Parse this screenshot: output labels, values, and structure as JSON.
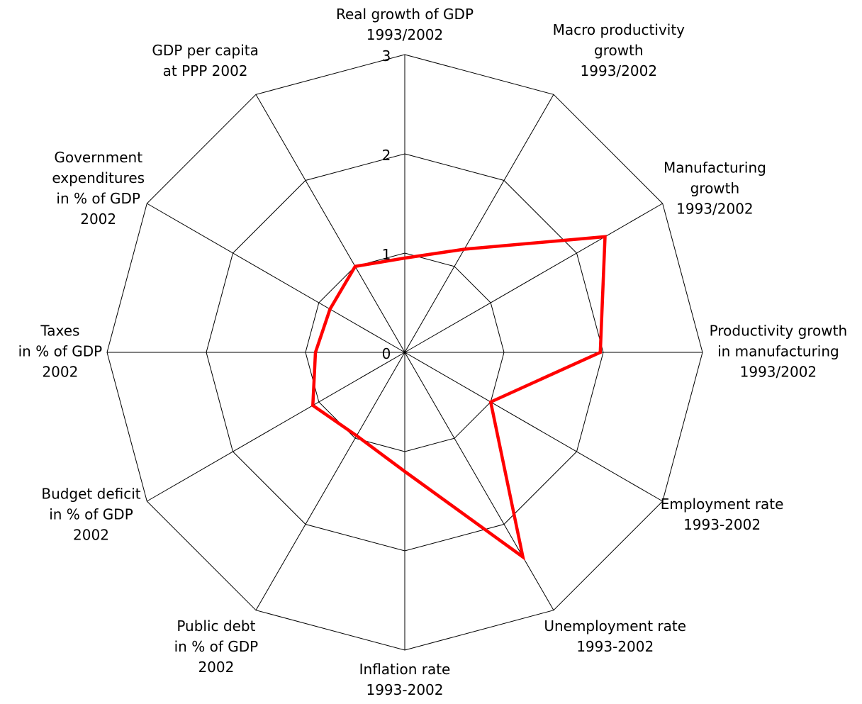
{
  "chart_data": {
    "type": "radar",
    "rmax": 3,
    "ticks": [
      "0",
      "1",
      "2",
      "3"
    ],
    "axes": [
      {
        "label": [
          "Real growth of GDP",
          "1993/2002"
        ]
      },
      {
        "label": [
          "Macro productivity",
          "growth",
          "1993/2002"
        ]
      },
      {
        "label": [
          "Manufacturing",
          "growth",
          "1993/2002"
        ]
      },
      {
        "label": [
          "Productivity growth",
          "in manufacturing",
          "1993/2002"
        ]
      },
      {
        "label": [
          "Employment rate",
          "1993-2002"
        ]
      },
      {
        "label": [
          "Unemployment rate",
          "1993-2002"
        ]
      },
      {
        "label": [
          "Inflation rate",
          "1993-2002"
        ]
      },
      {
        "label": [
          "Public debt",
          "in % of GDP",
          "2002"
        ]
      },
      {
        "label": [
          "Budget deficit",
          "in % of GDP",
          "2002"
        ]
      },
      {
        "label": [
          "Taxes",
          "in % of GDP",
          "2002"
        ]
      },
      {
        "label": [
          "Government",
          "expenditures",
          "in % of GDP",
          "2002"
        ]
      },
      {
        "label": [
          "GDP per capita",
          "at PPP 2002"
        ]
      }
    ],
    "series": [
      {
        "color": "#ff0000",
        "values": [
          0.95,
          1.2,
          2.33,
          1.97,
          1.0,
          2.38,
          1.2,
          0.97,
          1.07,
          0.9,
          0.87,
          1.0
        ]
      }
    ],
    "grid": true
  }
}
